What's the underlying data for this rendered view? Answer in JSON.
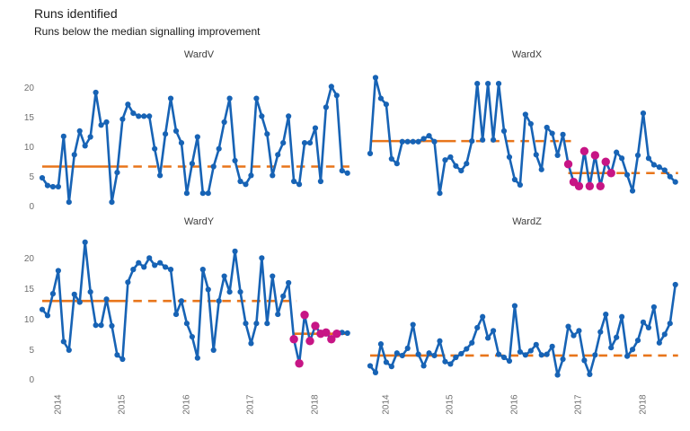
{
  "title": "Runs identified",
  "subtitle": "Runs below the median signalling improvement",
  "colors": {
    "line": "#1763b5",
    "median_line": "#e8751a",
    "run_highlight": "#c71585",
    "axis_text": "#6e6e6e",
    "panel_title_text": "#3d3d3d",
    "title_text": "#1a1a1a"
  },
  "axis": {
    "y_ticks": [
      "20",
      "15",
      "10",
      "5",
      "0"
    ],
    "x_ticks": [
      "2014",
      "2015",
      "2016",
      "2017",
      "2018"
    ],
    "x_tick_month_indices": [
      3,
      15,
      27,
      39,
      51
    ],
    "ylim": [
      0,
      23
    ],
    "gridlines": false,
    "x_label_rotation_deg": 90
  },
  "chart_data": [
    {
      "type": "line",
      "title": "WardV",
      "frequency": "monthly",
      "n_points": 58,
      "values": [
        5.1,
        3.8,
        3.6,
        3.6,
        12.1,
        1.0,
        9.0,
        13.0,
        10.5,
        12.0,
        19.5,
        14.0,
        14.5,
        1.0,
        6.0,
        15.0,
        17.5,
        16.0,
        15.5,
        15.5,
        15.5,
        10.0,
        5.5,
        12.5,
        18.5,
        13.0,
        11.0,
        2.5,
        7.5,
        12.0,
        2.5,
        2.5,
        7.0,
        10.0,
        14.5,
        18.5,
        8.0,
        4.5,
        4.0,
        5.5,
        18.5,
        15.5,
        12.5,
        5.5,
        9.0,
        11.0,
        15.5,
        4.5,
        4.0,
        11.0,
        11.0,
        13.5,
        4.5,
        17.0,
        20.5,
        19.0,
        6.3,
        5.9
      ],
      "medians": [
        {
          "value": 7.0,
          "solid": [
            0,
            16
          ],
          "dashed": [
            16,
            57
          ]
        }
      ],
      "highlight": null
    },
    {
      "type": "line",
      "title": "WardX",
      "frequency": "monthly",
      "n_points": 58,
      "values": [
        9.2,
        22.0,
        18.5,
        17.5,
        8.3,
        7.5,
        11.2,
        11.2,
        11.2,
        11.2,
        11.7,
        12.2,
        11.2,
        2.5,
        8.1,
        8.6,
        7.1,
        6.3,
        7.5,
        11.3,
        21.0,
        11.5,
        21.0,
        11.5,
        21.0,
        13.0,
        8.6,
        4.8,
        3.9,
        15.8,
        14.2,
        9.0,
        6.5,
        13.6,
        12.6,
        8.9,
        12.4,
        7.4,
        4.4,
        3.7,
        9.6,
        3.7,
        8.9,
        3.7,
        7.8,
        5.9,
        9.4,
        8.4,
        5.6,
        2.9,
        8.9,
        16.0,
        8.4,
        7.3,
        6.9,
        6.4,
        5.3,
        4.4
      ],
      "medians": [
        {
          "value": 11.3,
          "solid": [
            0,
            16
          ],
          "dashed": [
            16,
            37
          ]
        },
        {
          "value": 5.9,
          "solid": [
            37,
            45
          ],
          "dashed": [
            45,
            57
          ]
        }
      ],
      "highlight": {
        "start": 37,
        "end": 45
      }
    },
    {
      "type": "line",
      "title": "WardY",
      "frequency": "monthly",
      "n_points": 58,
      "values": [
        11.9,
        10.9,
        14.5,
        18.3,
        6.6,
        5.2,
        14.4,
        13.1,
        23.0,
        14.8,
        9.3,
        9.3,
        13.6,
        9.2,
        4.4,
        3.7,
        16.4,
        18.5,
        19.6,
        18.9,
        20.4,
        19.2,
        19.6,
        18.9,
        18.5,
        11.1,
        13.3,
        9.6,
        7.4,
        3.9,
        18.5,
        15.2,
        5.2,
        13.3,
        17.4,
        14.8,
        21.5,
        14.8,
        9.6,
        6.3,
        9.6,
        20.4,
        9.6,
        17.4,
        11.1,
        14.1,
        16.3,
        7.0,
        3.0,
        11.0,
        6.7,
        9.2,
        7.9,
        8.1,
        7.0,
        7.9,
        8.1,
        8.0
      ],
      "medians": [
        {
          "value": 13.3,
          "solid": [
            0,
            16
          ],
          "dashed": [
            16,
            47
          ]
        },
        {
          "value": 7.9,
          "solid": [
            47,
            57
          ],
          "dashed": null
        }
      ],
      "highlight": {
        "start": 47,
        "end": 55
      }
    },
    {
      "type": "line",
      "title": "WardZ",
      "frequency": "monthly",
      "n_points": 58,
      "values": [
        2.6,
        1.5,
        6.2,
        3.2,
        2.5,
        4.7,
        4.3,
        5.5,
        9.4,
        4.5,
        2.6,
        4.7,
        4.3,
        6.7,
        3.3,
        2.9,
        4.0,
        4.6,
        5.4,
        6.4,
        8.9,
        10.7,
        7.2,
        8.4,
        4.5,
        4.0,
        3.4,
        12.5,
        4.9,
        4.4,
        5.1,
        6.1,
        4.4,
        4.5,
        5.8,
        1.1,
        3.7,
        9.1,
        7.6,
        8.4,
        3.5,
        1.2,
        4.4,
        8.2,
        11.1,
        5.6,
        7.3,
        10.7,
        4.2,
        5.3,
        6.8,
        9.8,
        8.9,
        12.3,
        6.4,
        7.8,
        9.6,
        16.0
      ],
      "medians": [
        {
          "value": 4.3,
          "solid": [
            0,
            14
          ],
          "dashed": [
            14,
            57
          ]
        }
      ],
      "highlight": null
    }
  ]
}
